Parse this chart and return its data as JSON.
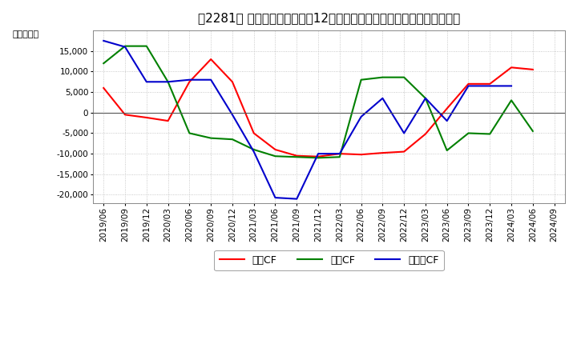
{
  "title": "［2281］ キャッシュフローの12か月移動合計の対前年同期増減額の推移",
  "ylabel": "（百万円）",
  "background_color": "#ffffff",
  "plot_bg_color": "#ffffff",
  "grid_color": "#bbbbbb",
  "xlabels": [
    "2019/06",
    "2019/09",
    "2019/12",
    "2020/03",
    "2020/06",
    "2020/09",
    "2020/12",
    "2021/03",
    "2021/06",
    "2021/09",
    "2021/12",
    "2022/03",
    "2022/06",
    "2022/09",
    "2022/12",
    "2023/03",
    "2023/06",
    "2023/09",
    "2023/12",
    "2024/03",
    "2024/06",
    "2024/09"
  ],
  "operating_cf": [
    6000,
    -500,
    -1200,
    -2000,
    7500,
    13000,
    7500,
    -5000,
    -9000,
    -10500,
    -10700,
    -10000,
    -10200,
    -9800,
    -9500,
    -5200,
    1000,
    7000,
    7000,
    11000,
    10500,
    null
  ],
  "investing_cf": [
    12000,
    16200,
    16200,
    7500,
    -5000,
    -6200,
    -6500,
    -9000,
    -10600,
    -10800,
    -11000,
    -10800,
    8000,
    8600,
    8600,
    3500,
    -9200,
    -5000,
    -5200,
    3000,
    -4500,
    null
  ],
  "free_cf": [
    17500,
    16000,
    7500,
    7500,
    8000,
    8000,
    -500,
    -9500,
    -20700,
    -21000,
    -10000,
    -10000,
    -1000,
    3500,
    -5000,
    3500,
    -2000,
    6500,
    6500,
    6500,
    null,
    null
  ],
  "ylim": [
    -22000,
    20000
  ],
  "yticks": [
    -20000,
    -15000,
    -10000,
    -5000,
    0,
    5000,
    10000,
    15000
  ],
  "line_colors": {
    "operating": "#ff0000",
    "investing": "#008000",
    "free": "#0000cc"
  },
  "legend_labels": {
    "operating": "営業CF",
    "investing": "投資CF",
    "free": "フリーCF"
  },
  "title_fontsize": 11,
  "tick_fontsize": 7.5,
  "ylabel_fontsize": 8,
  "legend_fontsize": 9
}
